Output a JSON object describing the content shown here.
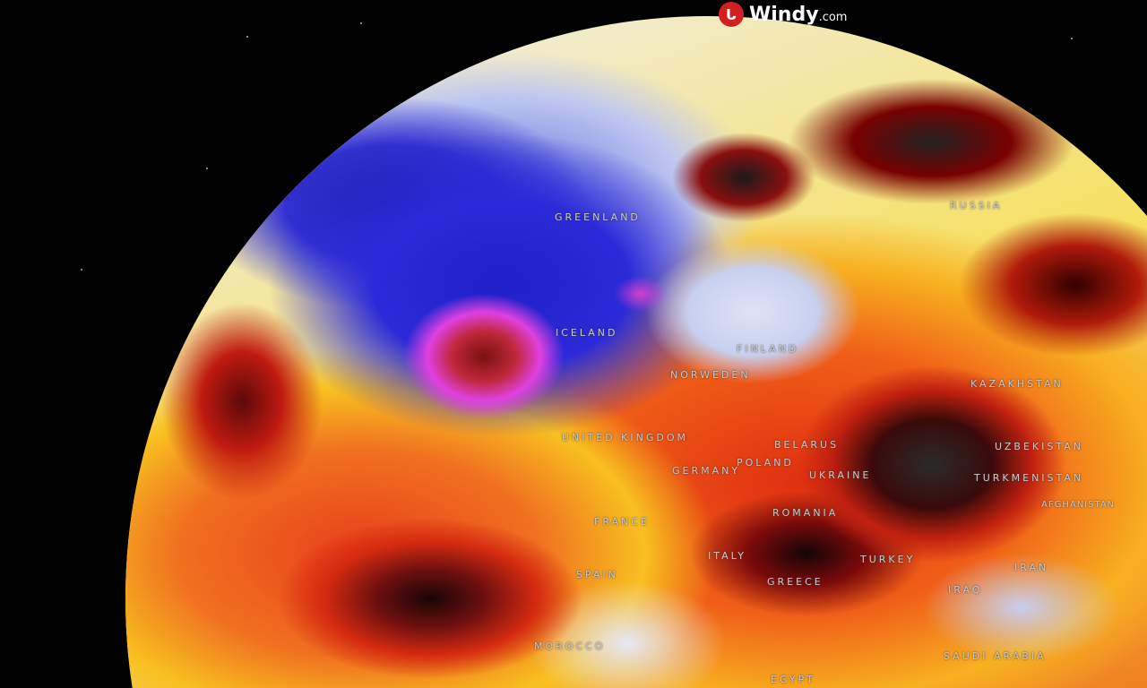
{
  "logo": {
    "brand": "Windy",
    "suffix": ".com",
    "icon": "windy-logo-icon",
    "accent": "#d21f1f"
  },
  "map": {
    "labels": [
      {
        "name": "GREENLAND"
      },
      {
        "name": "RUSSIA"
      },
      {
        "name": "ICELAND"
      },
      {
        "name": "FINLAND"
      },
      {
        "name": "NORWEDEN"
      },
      {
        "name": "UNITED KINGDOM"
      },
      {
        "name": "BELARUS"
      },
      {
        "name": "POLAND"
      },
      {
        "name": "GERMANY"
      },
      {
        "name": "UKRAINE"
      },
      {
        "name": "KAZAKHSTAN"
      },
      {
        "name": "UZBEKISTAN"
      },
      {
        "name": "TURKMENISTAN"
      },
      {
        "name": "AFGHANISTAN"
      },
      {
        "name": "FRANCE"
      },
      {
        "name": "ROMANIA"
      },
      {
        "name": "SPAIN"
      },
      {
        "name": "ITALY"
      },
      {
        "name": "GREECE"
      },
      {
        "name": "TURKEY"
      },
      {
        "name": "IRAN"
      },
      {
        "name": "IRAQ"
      },
      {
        "name": "MOROCCO"
      },
      {
        "name": "SAUDI ARABIA"
      },
      {
        "name": "EGYPT"
      }
    ],
    "colors": {
      "cold": "#2a2ad8",
      "low_pressure": "#e040e0",
      "warm": "#f06018",
      "hot": "#7a0a0a",
      "extreme": "#2a2a2a"
    }
  }
}
